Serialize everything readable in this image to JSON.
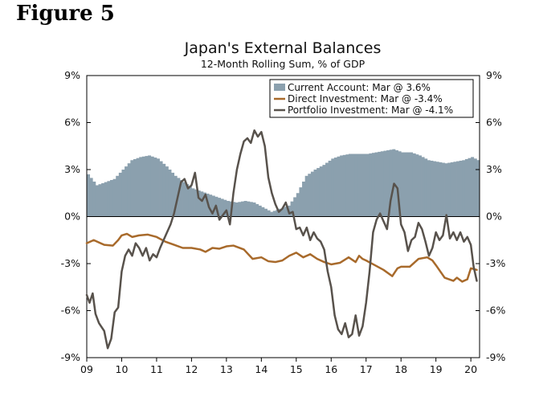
{
  "figure_label": "Figure 5",
  "chart_data": {
    "type": "area",
    "title": "Japan's External Balances",
    "subtitle": "12-Month Rolling Sum, % of GDP",
    "xlabel": "",
    "ylabel": "",
    "x_tick_labels": [
      "09",
      "10",
      "11",
      "12",
      "13",
      "14",
      "15",
      "16",
      "17",
      "18",
      "19",
      "20"
    ],
    "x_tick_values": [
      2009,
      2010,
      2011,
      2012,
      2013,
      2014,
      2015,
      2016,
      2017,
      2018,
      2019,
      2020
    ],
    "xlim": [
      2009.0,
      2020.25
    ],
    "ylim": [
      -9,
      9
    ],
    "y_ticks": [
      9,
      6,
      3,
      0,
      -3,
      -6,
      -9
    ],
    "y_tick_labels": [
      "9%",
      "6%",
      "3%",
      "0%",
      "-3%",
      "-6%",
      "-9%"
    ],
    "legend_position": "top-right",
    "colors": {
      "current_account": "#8ba0ae",
      "direct_investment": "#a86a2b",
      "portfolio_investment": "#58524c",
      "axis": "#000000"
    },
    "series": [
      {
        "name": "Current Account",
        "legend_label": "Current Account: Mar @ 3.6%",
        "style": "bars",
        "points": [
          [
            2009.0,
            2.7
          ],
          [
            2009.25,
            2.0
          ],
          [
            2009.5,
            2.2
          ],
          [
            2009.75,
            2.4
          ],
          [
            2010.0,
            3.0
          ],
          [
            2010.25,
            3.6
          ],
          [
            2010.5,
            3.8
          ],
          [
            2010.75,
            3.9
          ],
          [
            2011.0,
            3.7
          ],
          [
            2011.25,
            3.2
          ],
          [
            2011.5,
            2.6
          ],
          [
            2011.75,
            2.2
          ],
          [
            2012.0,
            1.8
          ],
          [
            2012.25,
            1.6
          ],
          [
            2012.5,
            1.4
          ],
          [
            2012.75,
            1.2
          ],
          [
            2013.0,
            1.0
          ],
          [
            2013.25,
            0.9
          ],
          [
            2013.5,
            1.0
          ],
          [
            2013.75,
            0.9
          ],
          [
            2014.0,
            0.6
          ],
          [
            2014.25,
            0.3
          ],
          [
            2014.5,
            0.5
          ],
          [
            2014.75,
            0.7
          ],
          [
            2015.0,
            1.5
          ],
          [
            2015.25,
            2.6
          ],
          [
            2015.5,
            3.0
          ],
          [
            2015.75,
            3.3
          ],
          [
            2016.0,
            3.7
          ],
          [
            2016.25,
            3.9
          ],
          [
            2016.5,
            4.0
          ],
          [
            2016.75,
            4.0
          ],
          [
            2017.0,
            4.0
          ],
          [
            2017.25,
            4.1
          ],
          [
            2017.5,
            4.2
          ],
          [
            2017.75,
            4.3
          ],
          [
            2018.0,
            4.1
          ],
          [
            2018.25,
            4.1
          ],
          [
            2018.5,
            3.9
          ],
          [
            2018.75,
            3.6
          ],
          [
            2019.0,
            3.5
          ],
          [
            2019.25,
            3.4
          ],
          [
            2019.5,
            3.5
          ],
          [
            2019.75,
            3.6
          ],
          [
            2020.0,
            3.8
          ],
          [
            2020.17,
            3.6
          ]
        ]
      },
      {
        "name": "Direct Investment",
        "legend_label": "Direct Investment: Mar @ -3.4%",
        "style": "line",
        "points": [
          [
            2009.0,
            -1.7
          ],
          [
            2009.2,
            -1.5
          ],
          [
            2009.5,
            -1.8
          ],
          [
            2009.75,
            -1.85
          ],
          [
            2009.9,
            -1.5
          ],
          [
            2010.0,
            -1.2
          ],
          [
            2010.15,
            -1.1
          ],
          [
            2010.3,
            -1.3
          ],
          [
            2010.5,
            -1.2
          ],
          [
            2010.75,
            -1.15
          ],
          [
            2011.0,
            -1.3
          ],
          [
            2011.25,
            -1.6
          ],
          [
            2011.5,
            -1.8
          ],
          [
            2011.75,
            -2.0
          ],
          [
            2012.0,
            -2.0
          ],
          [
            2012.25,
            -2.1
          ],
          [
            2012.4,
            -2.25
          ],
          [
            2012.6,
            -2.0
          ],
          [
            2012.8,
            -2.05
          ],
          [
            2013.0,
            -1.9
          ],
          [
            2013.2,
            -1.85
          ],
          [
            2013.5,
            -2.1
          ],
          [
            2013.75,
            -2.7
          ],
          [
            2014.0,
            -2.6
          ],
          [
            2014.2,
            -2.85
          ],
          [
            2014.4,
            -2.9
          ],
          [
            2014.6,
            -2.8
          ],
          [
            2014.8,
            -2.5
          ],
          [
            2015.0,
            -2.3
          ],
          [
            2015.2,
            -2.6
          ],
          [
            2015.4,
            -2.4
          ],
          [
            2015.6,
            -2.7
          ],
          [
            2015.8,
            -2.9
          ],
          [
            2016.0,
            -3.05
          ],
          [
            2016.25,
            -2.95
          ],
          [
            2016.5,
            -2.6
          ],
          [
            2016.7,
            -2.9
          ],
          [
            2016.8,
            -2.5
          ],
          [
            2016.9,
            -2.7
          ],
          [
            2017.0,
            -2.8
          ],
          [
            2017.25,
            -3.1
          ],
          [
            2017.5,
            -3.4
          ],
          [
            2017.75,
            -3.8
          ],
          [
            2017.9,
            -3.3
          ],
          [
            2018.0,
            -3.2
          ],
          [
            2018.25,
            -3.2
          ],
          [
            2018.4,
            -2.9
          ],
          [
            2018.5,
            -2.7
          ],
          [
            2018.75,
            -2.6
          ],
          [
            2018.9,
            -2.8
          ],
          [
            2019.0,
            -3.1
          ],
          [
            2019.25,
            -3.9
          ],
          [
            2019.5,
            -4.1
          ],
          [
            2019.6,
            -3.9
          ],
          [
            2019.75,
            -4.15
          ],
          [
            2019.9,
            -4.0
          ],
          [
            2020.0,
            -3.3
          ],
          [
            2020.17,
            -3.4
          ]
        ]
      },
      {
        "name": "Portfolio Investment",
        "legend_label": "Portfolio Investment: Mar @ -4.1%",
        "style": "line",
        "points": [
          [
            2009.0,
            -5.0
          ],
          [
            2009.08,
            -5.5
          ],
          [
            2009.17,
            -4.9
          ],
          [
            2009.25,
            -6.2
          ],
          [
            2009.35,
            -6.8
          ],
          [
            2009.5,
            -7.3
          ],
          [
            2009.6,
            -8.4
          ],
          [
            2009.7,
            -7.8
          ],
          [
            2009.8,
            -6.1
          ],
          [
            2009.9,
            -5.8
          ],
          [
            2010.0,
            -3.5
          ],
          [
            2010.1,
            -2.5
          ],
          [
            2010.2,
            -2.1
          ],
          [
            2010.3,
            -2.5
          ],
          [
            2010.4,
            -1.7
          ],
          [
            2010.5,
            -2.0
          ],
          [
            2010.6,
            -2.5
          ],
          [
            2010.7,
            -2.0
          ],
          [
            2010.8,
            -2.8
          ],
          [
            2010.9,
            -2.4
          ],
          [
            2011.0,
            -2.6
          ],
          [
            2011.1,
            -2.0
          ],
          [
            2011.2,
            -1.5
          ],
          [
            2011.3,
            -1.0
          ],
          [
            2011.4,
            -0.5
          ],
          [
            2011.5,
            0.2
          ],
          [
            2011.6,
            1.2
          ],
          [
            2011.7,
            2.2
          ],
          [
            2011.8,
            2.4
          ],
          [
            2011.9,
            1.8
          ],
          [
            2012.0,
            2.0
          ],
          [
            2012.1,
            2.8
          ],
          [
            2012.2,
            1.2
          ],
          [
            2012.3,
            1.0
          ],
          [
            2012.4,
            1.4
          ],
          [
            2012.5,
            0.6
          ],
          [
            2012.6,
            0.2
          ],
          [
            2012.7,
            0.7
          ],
          [
            2012.8,
            -0.2
          ],
          [
            2012.9,
            0.1
          ],
          [
            2013.0,
            0.4
          ],
          [
            2013.1,
            -0.5
          ],
          [
            2013.2,
            1.5
          ],
          [
            2013.3,
            3.0
          ],
          [
            2013.4,
            4.0
          ],
          [
            2013.5,
            4.8
          ],
          [
            2013.6,
            5.0
          ],
          [
            2013.7,
            4.7
          ],
          [
            2013.8,
            5.5
          ],
          [
            2013.9,
            5.1
          ],
          [
            2014.0,
            5.4
          ],
          [
            2014.1,
            4.5
          ],
          [
            2014.2,
            2.5
          ],
          [
            2014.3,
            1.5
          ],
          [
            2014.4,
            0.8
          ],
          [
            2014.5,
            0.3
          ],
          [
            2014.6,
            0.5
          ],
          [
            2014.7,
            0.9
          ],
          [
            2014.8,
            0.2
          ],
          [
            2014.9,
            0.3
          ],
          [
            2015.0,
            -0.8
          ],
          [
            2015.1,
            -0.7
          ],
          [
            2015.2,
            -1.2
          ],
          [
            2015.3,
            -0.7
          ],
          [
            2015.4,
            -1.5
          ],
          [
            2015.5,
            -1.0
          ],
          [
            2015.6,
            -1.4
          ],
          [
            2015.7,
            -1.6
          ],
          [
            2015.8,
            -2.1
          ],
          [
            2015.9,
            -3.5
          ],
          [
            2016.0,
            -4.5
          ],
          [
            2016.1,
            -6.3
          ],
          [
            2016.2,
            -7.2
          ],
          [
            2016.3,
            -7.5
          ],
          [
            2016.4,
            -6.8
          ],
          [
            2016.5,
            -7.7
          ],
          [
            2016.6,
            -7.5
          ],
          [
            2016.7,
            -6.3
          ],
          [
            2016.8,
            -7.6
          ],
          [
            2016.9,
            -7.0
          ],
          [
            2017.0,
            -5.5
          ],
          [
            2017.1,
            -3.5
          ],
          [
            2017.2,
            -1.0
          ],
          [
            2017.3,
            -0.2
          ],
          [
            2017.4,
            0.2
          ],
          [
            2017.5,
            -0.3
          ],
          [
            2017.6,
            -0.8
          ],
          [
            2017.7,
            1.0
          ],
          [
            2017.8,
            2.1
          ],
          [
            2017.9,
            1.8
          ],
          [
            2018.0,
            -0.5
          ],
          [
            2018.1,
            -1.0
          ],
          [
            2018.2,
            -2.2
          ],
          [
            2018.3,
            -1.5
          ],
          [
            2018.4,
            -1.3
          ],
          [
            2018.5,
            -0.4
          ],
          [
            2018.6,
            -0.8
          ],
          [
            2018.7,
            -1.6
          ],
          [
            2018.8,
            -2.5
          ],
          [
            2018.9,
            -2.0
          ],
          [
            2019.0,
            -1.0
          ],
          [
            2019.1,
            -1.5
          ],
          [
            2019.2,
            -1.2
          ],
          [
            2019.3,
            0.1
          ],
          [
            2019.4,
            -1.4
          ],
          [
            2019.5,
            -1.0
          ],
          [
            2019.6,
            -1.5
          ],
          [
            2019.7,
            -1.0
          ],
          [
            2019.8,
            -1.6
          ],
          [
            2019.9,
            -1.3
          ],
          [
            2020.0,
            -1.8
          ],
          [
            2020.08,
            -3.2
          ],
          [
            2020.17,
            -4.1
          ]
        ]
      }
    ]
  }
}
